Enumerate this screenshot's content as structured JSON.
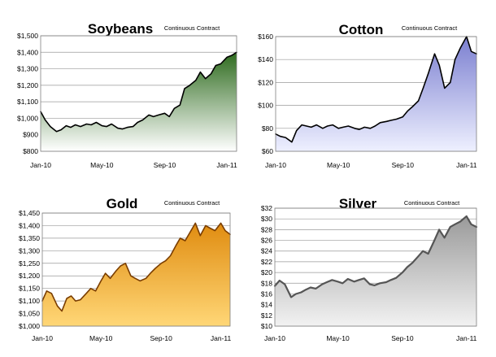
{
  "chart_data": [
    {
      "type": "area",
      "title": "Soybeans",
      "subtitle": "Continuous Contract",
      "ylim": [
        800,
        1500
      ],
      "yticks": [
        "$800",
        "$900",
        "$1,000",
        "$1,100",
        "$1,200",
        "$1,300",
        "$1,400",
        "$1,500"
      ],
      "xticks": [
        "Jan-10",
        "May-10",
        "Sep-10",
        "Jan-11"
      ],
      "grid": true,
      "colors": {
        "line": "#000000",
        "fill_top": "#2e6b1e",
        "fill_bottom": "#ffffff"
      },
      "x": [
        "2010-01-01",
        "2010-01-10",
        "2010-01-20",
        "2010-02-01",
        "2010-02-10",
        "2010-02-20",
        "2010-03-01",
        "2010-03-10",
        "2010-03-20",
        "2010-04-01",
        "2010-04-10",
        "2010-04-20",
        "2010-05-01",
        "2010-05-10",
        "2010-05-20",
        "2010-06-01",
        "2010-06-10",
        "2010-06-20",
        "2010-07-01",
        "2010-07-10",
        "2010-07-20",
        "2010-08-01",
        "2010-08-10",
        "2010-08-20",
        "2010-09-01",
        "2010-09-10",
        "2010-09-20",
        "2010-10-01",
        "2010-10-10",
        "2010-10-20",
        "2010-11-01",
        "2010-11-10",
        "2010-11-20",
        "2010-12-01",
        "2010-12-10",
        "2010-12-20",
        "2011-01-01",
        "2011-01-10",
        "2011-01-20"
      ],
      "y": [
        1040,
        990,
        950,
        920,
        930,
        955,
        945,
        960,
        950,
        965,
        960,
        975,
        955,
        950,
        965,
        940,
        935,
        945,
        950,
        975,
        990,
        1020,
        1010,
        1020,
        1030,
        1010,
        1060,
        1080,
        1180,
        1200,
        1230,
        1280,
        1240,
        1270,
        1320,
        1330,
        1370,
        1380,
        1400
      ]
    },
    {
      "type": "area",
      "title": "Cotton",
      "subtitle": "Continuous Contract",
      "ylim": [
        60,
        160
      ],
      "yticks": [
        "$60",
        "$80",
        "$100",
        "$120",
        "$140",
        "$160"
      ],
      "xticks": [
        "Jan-10",
        "May-10",
        "Sep-10",
        "Jan-11"
      ],
      "grid": true,
      "colors": {
        "line": "#000000",
        "fill_top": "#7b7fd0",
        "fill_bottom": "#eef0ff"
      },
      "x": [
        "2010-01-01",
        "2010-01-10",
        "2010-01-20",
        "2010-02-01",
        "2010-02-10",
        "2010-02-20",
        "2010-03-01",
        "2010-03-10",
        "2010-03-20",
        "2010-04-01",
        "2010-04-10",
        "2010-04-20",
        "2010-05-01",
        "2010-05-10",
        "2010-05-20",
        "2010-06-01",
        "2010-06-10",
        "2010-06-20",
        "2010-07-01",
        "2010-07-10",
        "2010-07-20",
        "2010-08-01",
        "2010-08-10",
        "2010-08-20",
        "2010-09-01",
        "2010-09-10",
        "2010-09-20",
        "2010-10-01",
        "2010-10-10",
        "2010-10-20",
        "2010-11-01",
        "2010-11-10",
        "2010-11-20",
        "2010-12-01",
        "2010-12-10",
        "2010-12-20",
        "2011-01-01",
        "2011-01-10",
        "2011-01-20"
      ],
      "y": [
        75,
        73,
        72,
        68,
        78,
        83,
        82,
        81,
        83,
        80,
        82,
        83,
        80,
        81,
        82,
        80,
        79,
        81,
        80,
        82,
        85,
        86,
        87,
        88,
        90,
        95,
        99,
        104,
        115,
        128,
        145,
        135,
        115,
        120,
        140,
        150,
        160,
        147,
        145
      ]
    },
    {
      "type": "area",
      "title": "Gold",
      "subtitle": "Continuous Contract",
      "ylim": [
        1000,
        1450
      ],
      "yticks": [
        "$1,000",
        "$1,050",
        "$1,100",
        "$1,150",
        "$1,200",
        "$1,250",
        "$1,300",
        "$1,350",
        "$1,400",
        "$1,450"
      ],
      "xticks": [
        "Jan-10",
        "May-10",
        "Sep-10",
        "Jan-11"
      ],
      "grid": true,
      "colors": {
        "line": "#7a3d00",
        "fill_top": "#e08c10",
        "fill_bottom": "#ffd777"
      },
      "x": [
        "2010-01-01",
        "2010-01-10",
        "2010-01-20",
        "2010-02-01",
        "2010-02-10",
        "2010-02-20",
        "2010-03-01",
        "2010-03-10",
        "2010-03-20",
        "2010-04-01",
        "2010-04-10",
        "2010-04-20",
        "2010-05-01",
        "2010-05-10",
        "2010-05-20",
        "2010-06-01",
        "2010-06-10",
        "2010-06-20",
        "2010-07-01",
        "2010-07-10",
        "2010-07-20",
        "2010-08-01",
        "2010-08-10",
        "2010-08-20",
        "2010-09-01",
        "2010-09-10",
        "2010-09-20",
        "2010-10-01",
        "2010-10-10",
        "2010-10-20",
        "2010-11-01",
        "2010-11-10",
        "2010-11-20",
        "2010-12-01",
        "2010-12-10",
        "2010-12-20",
        "2011-01-01",
        "2011-01-10",
        "2011-01-20"
      ],
      "y": [
        1100,
        1140,
        1130,
        1080,
        1060,
        1110,
        1120,
        1100,
        1105,
        1130,
        1150,
        1140,
        1180,
        1210,
        1190,
        1220,
        1240,
        1250,
        1200,
        1190,
        1180,
        1190,
        1210,
        1230,
        1250,
        1260,
        1280,
        1320,
        1350,
        1340,
        1380,
        1410,
        1360,
        1400,
        1390,
        1380,
        1410,
        1380,
        1365
      ]
    },
    {
      "type": "area",
      "title": "Silver",
      "subtitle": "Continuous Contract",
      "ylim": [
        10,
        32
      ],
      "yticks": [
        "$10",
        "$12",
        "$14",
        "$16",
        "$18",
        "$20",
        "$22",
        "$24",
        "$26",
        "$28",
        "$30",
        "$32"
      ],
      "xticks": [
        "Jan-10",
        "May-10",
        "Sep-10",
        "Jan-11"
      ],
      "grid": true,
      "colors": {
        "line": "#555555",
        "fill_top": "#9a9a9a",
        "fill_bottom": "#f2f2f2"
      },
      "x": [
        "2010-01-01",
        "2010-01-10",
        "2010-01-20",
        "2010-02-01",
        "2010-02-10",
        "2010-02-20",
        "2010-03-01",
        "2010-03-10",
        "2010-03-20",
        "2010-04-01",
        "2010-04-10",
        "2010-04-20",
        "2010-05-01",
        "2010-05-10",
        "2010-05-20",
        "2010-06-01",
        "2010-06-10",
        "2010-06-20",
        "2010-07-01",
        "2010-07-10",
        "2010-07-20",
        "2010-08-01",
        "2010-08-10",
        "2010-08-20",
        "2010-09-01",
        "2010-09-10",
        "2010-09-20",
        "2010-10-01",
        "2010-10-10",
        "2010-10-20",
        "2010-11-01",
        "2010-11-10",
        "2010-11-20",
        "2010-12-01",
        "2010-12-10",
        "2010-12-20",
        "2011-01-01",
        "2011-01-10",
        "2011-01-20"
      ],
      "y": [
        17.5,
        18.5,
        17.8,
        15.4,
        16,
        16.3,
        16.8,
        17.2,
        17,
        17.8,
        18.2,
        18.6,
        18.3,
        18,
        18.8,
        18.3,
        18.6,
        18.9,
        17.8,
        17.6,
        18,
        18.2,
        18.6,
        19,
        20,
        21,
        21.8,
        23,
        24,
        23.5,
        26,
        28,
        26.5,
        28.5,
        29,
        29.5,
        30.5,
        29,
        28.5
      ]
    }
  ]
}
